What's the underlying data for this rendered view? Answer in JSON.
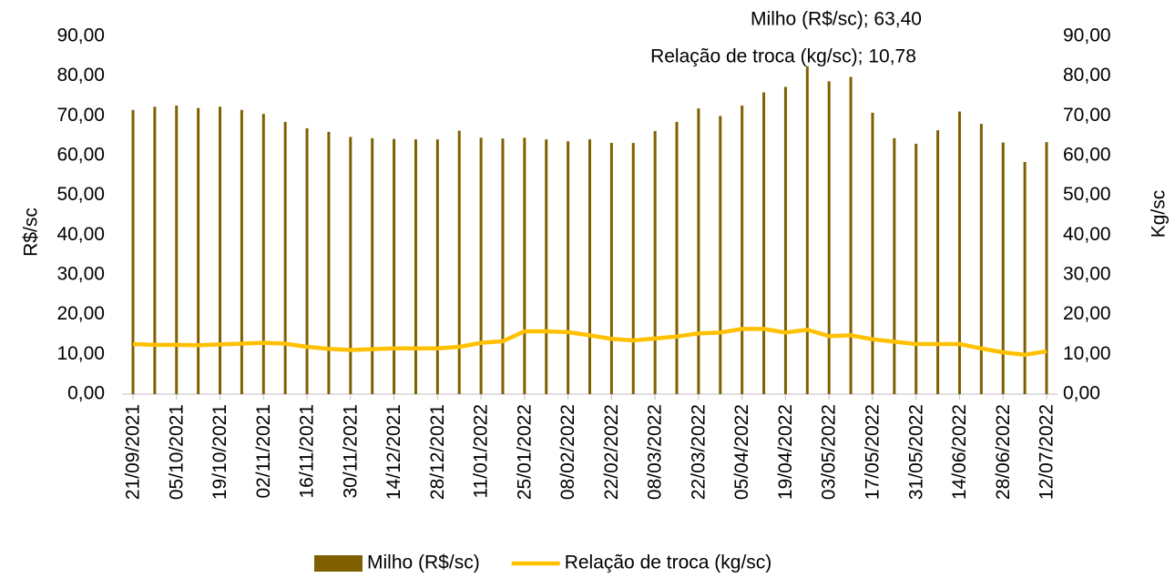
{
  "chart_data": {
    "type": "bar_line",
    "annotations": [
      "Milho (R$/sc); 63,40",
      "Relação de troca (kg/sc); 10,78"
    ],
    "y_label": "R$/sc",
    "y2_label": "Kg/sc",
    "categories": [
      "21/09/2021",
      null,
      "05/10/2021",
      null,
      "19/10/2021",
      null,
      "02/11/2021",
      null,
      "16/11/2021",
      null,
      "30/11/2021",
      null,
      "14/12/2021",
      null,
      "28/12/2021",
      null,
      "11/01/2022",
      null,
      "25/01/2022",
      null,
      "08/02/2022",
      null,
      "22/02/2022",
      null,
      "08/03/2022",
      null,
      "22/03/2022",
      null,
      "05/04/2022",
      null,
      "19/04/2022",
      null,
      "03/05/2022",
      null,
      "17/05/2022",
      null,
      "31/05/2022",
      null,
      "14/06/2022",
      null,
      "28/06/2022",
      null,
      "12/07/2022"
    ],
    "series": [
      {
        "name": "Milho (R$/sc)",
        "type": "bar",
        "color": "#7f6000",
        "values": [
          71.5,
          72.3,
          72.6,
          72.0,
          72.3,
          71.5,
          70.5,
          68.5,
          66.9,
          66.0,
          64.7,
          64.4,
          64.2,
          64.1,
          64.1,
          66.3,
          64.5,
          64.3,
          64.5,
          64.1,
          63.6,
          64.1,
          63.2,
          63.2,
          66.2,
          68.5,
          71.9,
          70.0,
          72.6,
          75.9,
          77.3,
          82.5,
          78.7,
          79.8,
          70.8,
          64.4,
          63.0,
          66.4,
          71.1,
          68.0,
          63.3,
          58.4,
          63.4
        ]
      },
      {
        "name": "Relação de troca (kg/sc)",
        "type": "line",
        "axis": "y2",
        "color": "#ffc000",
        "values": [
          12.6,
          12.4,
          12.4,
          12.3,
          12.5,
          12.7,
          12.9,
          12.7,
          11.9,
          11.4,
          11.1,
          11.3,
          11.5,
          11.5,
          11.5,
          11.9,
          12.9,
          13.3,
          15.8,
          15.8,
          15.6,
          14.8,
          13.9,
          13.5,
          14.0,
          14.5,
          15.3,
          15.5,
          16.4,
          16.4,
          15.5,
          16.2,
          14.6,
          14.8,
          13.8,
          13.2,
          12.6,
          12.6,
          12.6,
          11.5,
          10.5,
          9.9,
          10.78
        ]
      }
    ],
    "ylim": [
      0,
      90
    ],
    "yticks": [
      {
        "value": 0,
        "label": "0,00"
      },
      {
        "value": 10,
        "label": "10,00"
      },
      {
        "value": 20,
        "label": "20,00"
      },
      {
        "value": 30,
        "label": "30,00"
      },
      {
        "value": 40,
        "label": "40,00"
      },
      {
        "value": 50,
        "label": "50,00"
      },
      {
        "value": 60,
        "label": "60,00"
      },
      {
        "value": 70,
        "label": "70,00"
      },
      {
        "value": 80,
        "label": "80,00"
      },
      {
        "value": 90,
        "label": "90,00"
      }
    ],
    "y2lim": [
      0,
      90
    ],
    "y2ticks": [
      {
        "value": 0,
        "label": "0,00"
      },
      {
        "value": 10,
        "label": "10,00"
      },
      {
        "value": 20,
        "label": "20,00"
      },
      {
        "value": 30,
        "label": "30,00"
      },
      {
        "value": 40,
        "label": "40,00"
      },
      {
        "value": 50,
        "label": "50,00"
      },
      {
        "value": 60,
        "label": "60,00"
      },
      {
        "value": 70,
        "label": "70,00"
      },
      {
        "value": 80,
        "label": "80,00"
      },
      {
        "value": 90,
        "label": "90,00"
      }
    ],
    "legend": "bottom"
  }
}
